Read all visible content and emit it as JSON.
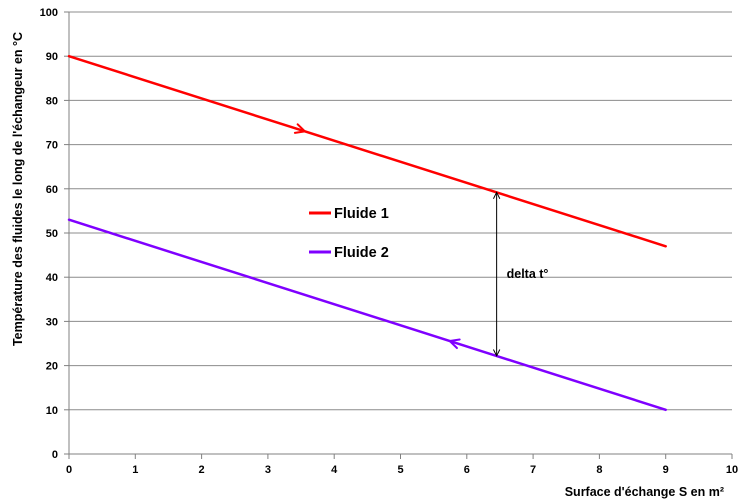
{
  "chart_data": {
    "type": "line",
    "title": "",
    "xlabel": "Surface d'échange S en m²",
    "ylabel": "Température des fluides le long de l'échangeur en °C",
    "xlim": [
      0,
      10
    ],
    "ylim": [
      0,
      100
    ],
    "xticks": [
      0,
      1,
      2,
      3,
      4,
      5,
      6,
      7,
      8,
      9,
      10
    ],
    "yticks": [
      0,
      10,
      20,
      30,
      40,
      50,
      60,
      70,
      80,
      90,
      100
    ],
    "grid": "horizontal",
    "legend_position": "center-left",
    "series": [
      {
        "name": "Fluide 1",
        "color": "#ff0000",
        "x": [
          0,
          9
        ],
        "y": [
          90,
          47
        ],
        "flow_arrow_x": 3.5,
        "flow_direction": "forward"
      },
      {
        "name": "Fluide 2",
        "color": "#7f00ff",
        "x": [
          0,
          9
        ],
        "y": [
          53,
          10
        ],
        "flow_arrow_x": 5.8,
        "flow_direction": "backward"
      }
    ],
    "annotations": [
      {
        "text": "delta t°",
        "x": 6.45,
        "y_from": 59.2,
        "y_to": 22.2
      }
    ]
  }
}
